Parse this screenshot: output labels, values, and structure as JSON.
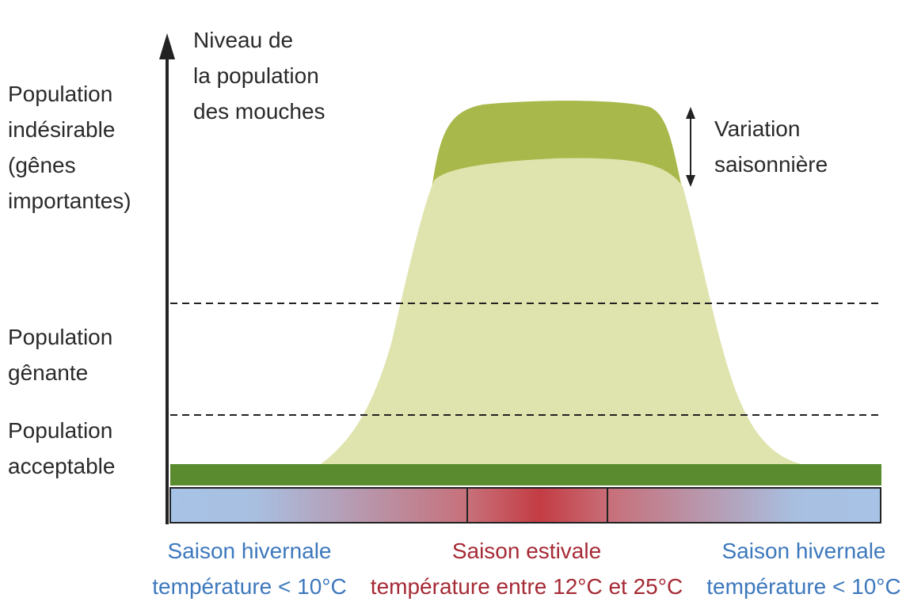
{
  "y_axis_title": [
    "Niveau de",
    "la population",
    "des mouches"
  ],
  "levels": [
    {
      "label": [
        "Population",
        "indésirable",
        "(gênes",
        "importantes)"
      ]
    },
    {
      "label": [
        "Population",
        "gênante"
      ]
    },
    {
      "label": [
        "Population",
        "acceptable"
      ]
    }
  ],
  "annotation": [
    "Variation",
    "saisonnière"
  ],
  "seasons": [
    {
      "lines": [
        "Saison hivernale",
        "température < 10°C"
      ]
    },
    {
      "lines": [
        "Saison estivale",
        "température entre 12°C et 25°C"
      ]
    },
    {
      "lines": [
        "Saison hivernale",
        "température < 10°C"
      ]
    }
  ]
}
